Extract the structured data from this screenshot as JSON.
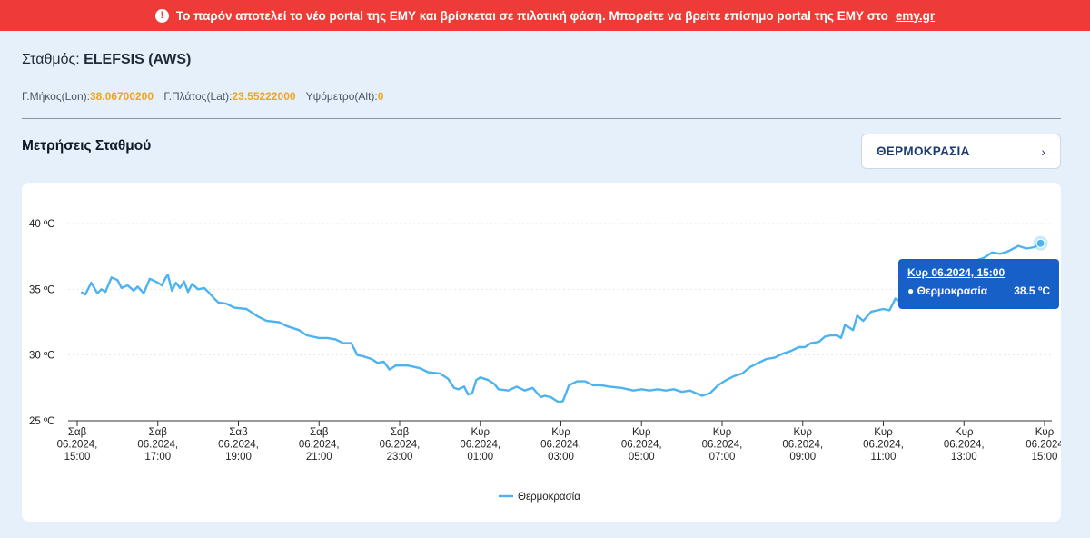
{
  "banner": {
    "icon": "exclamation-circle-icon",
    "text": "Το παρόν αποτελεί το νέο portal της ΕΜΥ και βρίσκεται σε πιλοτική φάση. Μπορείτε να βρείτε επίσημο portal της ΕΜΥ στο",
    "link_text": "emy.gr"
  },
  "station": {
    "label": "Σταθμός:",
    "name": "ELEFSIS (AWS)"
  },
  "coords": {
    "lon_label": "Γ.Μήκος(Lon):",
    "lon": "38.06700200",
    "lat_label": "Γ.Πλάτος(Lat):",
    "lat": "23.55222000",
    "alt_label": "Υψόμετρο(Alt):",
    "alt": "0"
  },
  "section_title": "Μετρήσεις Σταθμού",
  "metric_selector": {
    "label": "ΘΕΡΜΟΚΡΑΣΙΑ",
    "icon": "chevron-right-icon"
  },
  "tooltip": {
    "title": "Κυρ 06.2024, 15:00",
    "series": "Θερμοκρασία",
    "value": "38.5 ºC"
  },
  "colors": {
    "banner": "#ee3b37",
    "line": "#4db3f0",
    "tooltip": "#1660c8",
    "coords_value": "#f2a31b"
  },
  "chart_data": {
    "type": "line",
    "ylim": [
      25,
      40
    ],
    "y_ticks": [
      25,
      30,
      35,
      40
    ],
    "y_tick_labels": [
      "25 ºC",
      "30 ºC",
      "35 ºC",
      "40 ºC"
    ],
    "xlim": [
      0,
      24
    ],
    "x_ticks": [
      {
        "h": 0,
        "lines": [
          "Σαβ",
          "06.2024,",
          "15:00"
        ]
      },
      {
        "h": 2,
        "lines": [
          "Σαβ",
          "06.2024,",
          "17:00"
        ]
      },
      {
        "h": 4,
        "lines": [
          "Σαβ",
          "06.2024,",
          "19:00"
        ]
      },
      {
        "h": 6,
        "lines": [
          "Σαβ",
          "06.2024,",
          "21:00"
        ]
      },
      {
        "h": 8,
        "lines": [
          "Σαβ",
          "06.2024,",
          "23:00"
        ]
      },
      {
        "h": 10,
        "lines": [
          "Κυρ",
          "06.2024,",
          "01:00"
        ]
      },
      {
        "h": 12,
        "lines": [
          "Κυρ",
          "06.2024,",
          "03:00"
        ]
      },
      {
        "h": 14,
        "lines": [
          "Κυρ",
          "06.2024,",
          "05:00"
        ]
      },
      {
        "h": 16,
        "lines": [
          "Κυρ",
          "06.2024,",
          "07:00"
        ]
      },
      {
        "h": 18,
        "lines": [
          "Κυρ",
          "06.2024,",
          "09:00"
        ]
      },
      {
        "h": 20,
        "lines": [
          "Κυρ",
          "06.2024,",
          "11:00"
        ]
      },
      {
        "h": 22,
        "lines": [
          "Κυρ",
          "06.2024,",
          "13:00"
        ]
      },
      {
        "h": 24,
        "lines": [
          "Κυρ",
          "06.2024",
          "15:00"
        ]
      }
    ],
    "grid": true,
    "legend_position": "bottom",
    "series": [
      {
        "name": "Θερμοκρασία",
        "points": [
          [
            0.1,
            34.8
          ],
          [
            0.2,
            34.6
          ],
          [
            0.35,
            35.5
          ],
          [
            0.5,
            34.7
          ],
          [
            0.6,
            35.0
          ],
          [
            0.7,
            34.8
          ],
          [
            0.85,
            35.9
          ],
          [
            1.0,
            35.7
          ],
          [
            1.1,
            35.1
          ],
          [
            1.25,
            35.3
          ],
          [
            1.4,
            34.9
          ],
          [
            1.5,
            35.2
          ],
          [
            1.65,
            34.7
          ],
          [
            1.8,
            35.8
          ],
          [
            2.0,
            35.5
          ],
          [
            2.1,
            35.3
          ],
          [
            2.2,
            35.9
          ],
          [
            2.25,
            36.1
          ],
          [
            2.35,
            34.9
          ],
          [
            2.45,
            35.5
          ],
          [
            2.55,
            35.1
          ],
          [
            2.65,
            35.6
          ],
          [
            2.75,
            34.8
          ],
          [
            2.85,
            35.4
          ],
          [
            3.0,
            35.0
          ],
          [
            3.15,
            35.1
          ],
          [
            3.25,
            34.8
          ],
          [
            3.4,
            34.3
          ],
          [
            3.5,
            34.0
          ],
          [
            3.7,
            33.9
          ],
          [
            3.9,
            33.6
          ],
          [
            4.2,
            33.5
          ],
          [
            4.5,
            32.9
          ],
          [
            4.7,
            32.6
          ],
          [
            5.0,
            32.5
          ],
          [
            5.2,
            32.2
          ],
          [
            5.5,
            31.9
          ],
          [
            5.7,
            31.5
          ],
          [
            6.0,
            31.3
          ],
          [
            6.2,
            31.3
          ],
          [
            6.4,
            31.2
          ],
          [
            6.6,
            30.9
          ],
          [
            6.8,
            30.9
          ],
          [
            6.95,
            30.0
          ],
          [
            7.1,
            29.9
          ],
          [
            7.3,
            29.7
          ],
          [
            7.45,
            29.4
          ],
          [
            7.6,
            29.5
          ],
          [
            7.75,
            28.9
          ],
          [
            7.9,
            29.2
          ],
          [
            8.2,
            29.2
          ],
          [
            8.5,
            29.0
          ],
          [
            8.7,
            28.7
          ],
          [
            9.0,
            28.6
          ],
          [
            9.2,
            28.2
          ],
          [
            9.35,
            27.5
          ],
          [
            9.45,
            27.4
          ],
          [
            9.6,
            27.6
          ],
          [
            9.7,
            27.0
          ],
          [
            9.8,
            27.1
          ],
          [
            9.9,
            28.1
          ],
          [
            10.0,
            28.3
          ],
          [
            10.2,
            28.1
          ],
          [
            10.35,
            27.8
          ],
          [
            10.45,
            27.4
          ],
          [
            10.7,
            27.3
          ],
          [
            10.9,
            27.6
          ],
          [
            11.1,
            27.3
          ],
          [
            11.3,
            27.5
          ],
          [
            11.5,
            26.8
          ],
          [
            11.6,
            26.9
          ],
          [
            11.75,
            26.8
          ],
          [
            11.85,
            26.6
          ],
          [
            11.95,
            26.4
          ],
          [
            12.05,
            26.5
          ],
          [
            12.2,
            27.7
          ],
          [
            12.4,
            28.0
          ],
          [
            12.6,
            28.0
          ],
          [
            12.8,
            27.7
          ],
          [
            13.0,
            27.7
          ],
          [
            13.2,
            27.6
          ],
          [
            13.5,
            27.5
          ],
          [
            13.8,
            27.3
          ],
          [
            14.0,
            27.4
          ],
          [
            14.2,
            27.3
          ],
          [
            14.4,
            27.4
          ],
          [
            14.6,
            27.3
          ],
          [
            14.8,
            27.4
          ],
          [
            15.0,
            27.2
          ],
          [
            15.2,
            27.3
          ],
          [
            15.35,
            27.1
          ],
          [
            15.5,
            26.9
          ],
          [
            15.7,
            27.1
          ],
          [
            15.9,
            27.7
          ],
          [
            16.1,
            28.1
          ],
          [
            16.3,
            28.4
          ],
          [
            16.5,
            28.6
          ],
          [
            16.7,
            29.1
          ],
          [
            16.9,
            29.4
          ],
          [
            17.1,
            29.7
          ],
          [
            17.3,
            29.8
          ],
          [
            17.5,
            30.1
          ],
          [
            17.7,
            30.3
          ],
          [
            17.9,
            30.6
          ],
          [
            18.05,
            30.6
          ],
          [
            18.2,
            30.9
          ],
          [
            18.4,
            31.0
          ],
          [
            18.55,
            31.4
          ],
          [
            18.7,
            31.5
          ],
          [
            18.85,
            31.5
          ],
          [
            18.95,
            31.3
          ],
          [
            19.05,
            32.3
          ],
          [
            19.15,
            32.1
          ],
          [
            19.25,
            31.9
          ],
          [
            19.35,
            33.0
          ],
          [
            19.5,
            32.6
          ],
          [
            19.7,
            33.3
          ],
          [
            19.85,
            33.4
          ],
          [
            20.0,
            33.5
          ],
          [
            20.15,
            33.4
          ],
          [
            20.3,
            34.3
          ],
          [
            20.45,
            34.0
          ],
          [
            20.55,
            33.6
          ],
          [
            20.65,
            34.3
          ],
          [
            20.75,
            33.8
          ],
          [
            20.85,
            33.7
          ],
          [
            21.1,
            35.4
          ],
          [
            21.3,
            35.2
          ],
          [
            21.5,
            36.1
          ],
          [
            21.7,
            36.3
          ],
          [
            21.9,
            36.5
          ],
          [
            22.1,
            36.8
          ],
          [
            22.3,
            37.2
          ],
          [
            22.5,
            37.4
          ],
          [
            22.7,
            37.8
          ],
          [
            22.9,
            37.7
          ],
          [
            23.1,
            37.9
          ],
          [
            23.35,
            38.3
          ],
          [
            23.55,
            38.1
          ],
          [
            23.75,
            38.2
          ],
          [
            23.9,
            38.5
          ]
        ]
      }
    ]
  }
}
